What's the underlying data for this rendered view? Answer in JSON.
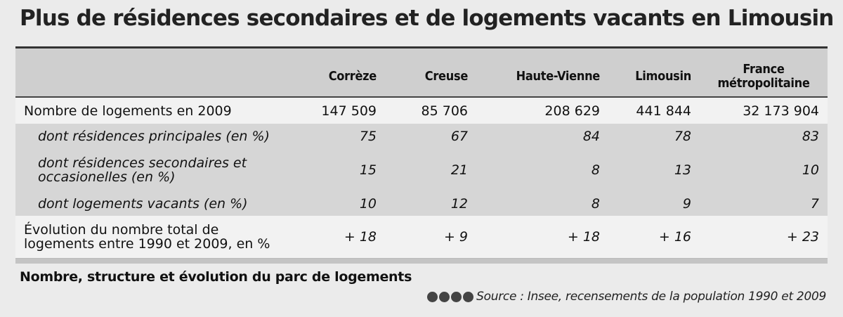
{
  "title": "Plus de résidences secondaires et de logements vacants en Limousin",
  "table": {
    "headers": {
      "empty": "",
      "c1": "Corrèze",
      "c2": "Creuse",
      "c3": "Haute-Vienne",
      "c4": "Limousin",
      "c5_line1": "France",
      "c5_line2": "métropolitaine"
    },
    "rows": [
      {
        "label_line1": "Nombre de logements en 2009",
        "label_line2": "",
        "values": [
          "147 509",
          "85 706",
          "208 629",
          "441 844",
          "32 173 904"
        ]
      },
      {
        "label_line1": "dont résidences principales (en %)",
        "label_line2": "",
        "values": [
          "75",
          "67",
          "84",
          "78",
          "83"
        ]
      },
      {
        "label_line1": "dont résidences secondaires et",
        "label_line2": "occasionelles (en %)",
        "values": [
          "15",
          "21",
          "8",
          "13",
          "10"
        ]
      },
      {
        "label_line1": "dont logements vacants (en %)",
        "label_line2": "",
        "values": [
          "10",
          "12",
          "8",
          "9",
          "7"
        ]
      },
      {
        "label_line1": "Évolution du nombre total de",
        "label_line2": "logements entre 1990 et 2009, en %",
        "values": [
          "+ 18",
          "+ 9",
          "+ 18",
          "+ 16",
          "+  23"
        ]
      }
    ]
  },
  "caption": "Nombre, structure et évolution du parc de logements",
  "source": "Source :  Insee, recensements de la population 1990 et 2009",
  "colors": {
    "background": "#ebebeb",
    "header_band": "#cfcfcf",
    "shaded_row": "#d6d6d6",
    "rule": "#333333"
  }
}
